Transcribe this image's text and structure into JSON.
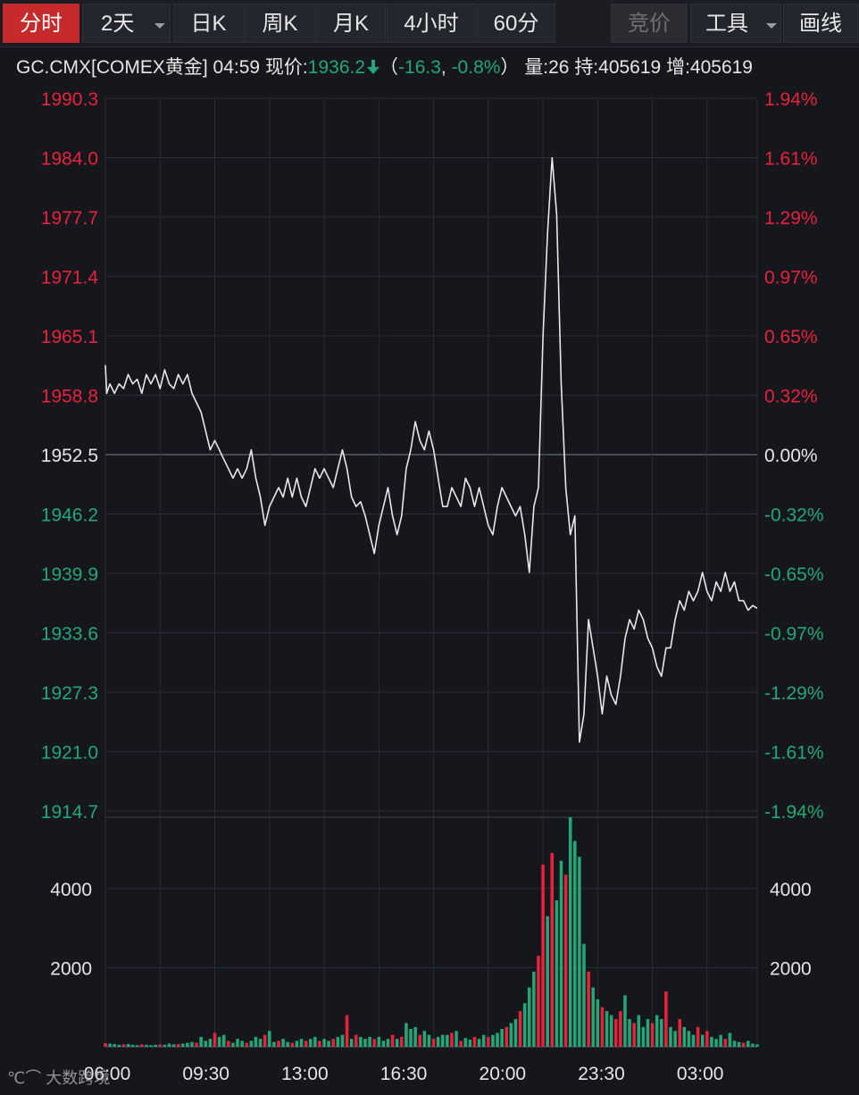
{
  "toolbar": {
    "tabs": [
      {
        "label": "分时",
        "active": true
      },
      {
        "label": "2天",
        "dropdown": true
      },
      {
        "label": "日K"
      },
      {
        "label": "周K"
      },
      {
        "label": "月K"
      },
      {
        "label": "4小时"
      },
      {
        "label": "60分"
      }
    ],
    "bidding_label": "竞价",
    "tools_label": "工具",
    "draw_label": "画线"
  },
  "quote": {
    "symbol": "GC.CMX[COMEX黄金]",
    "time": "04:59",
    "price_label": "现价:",
    "price": "1936.2",
    "change": "-16.3",
    "change_pct": "-0.8%",
    "volume_label": "量:26",
    "holding_label": "持:405619",
    "increase_label": "增:405619"
  },
  "watermark": "大数跨境",
  "colors": {
    "up": "#e8223c",
    "down": "#23a777",
    "line": "#e8e8e8",
    "neutral": "#e6e6e6"
  },
  "chart_data": {
    "type": "line",
    "base_price": 1952.5,
    "ylim": [
      1914.7,
      1990.3
    ],
    "y_ticks": [
      "1990.3",
      "1984.0",
      "1977.7",
      "1971.4",
      "1965.1",
      "1958.8",
      "1952.5",
      "1946.2",
      "1939.9",
      "1933.6",
      "1927.3",
      "1921.0",
      "1914.7"
    ],
    "pct_ticks": [
      "1.94%",
      "1.61%",
      "1.29%",
      "0.97%",
      "0.65%",
      "0.32%",
      "0.00%",
      "-0.32%",
      "-0.65%",
      "-0.97%",
      "-1.29%",
      "-1.61%",
      "-1.94%"
    ],
    "x_ticks": [
      "06:00",
      "09:30",
      "13:00",
      "16:30",
      "20:00",
      "23:30",
      "03:00"
    ],
    "price_series": [
      [
        0,
        1962
      ],
      [
        0.3,
        1959
      ],
      [
        1,
        1960
      ],
      [
        2,
        1959
      ],
      [
        3,
        1960
      ],
      [
        4,
        1959.5
      ],
      [
        5,
        1961
      ],
      [
        6,
        1960
      ],
      [
        7,
        1960.5
      ],
      [
        8,
        1959
      ],
      [
        9,
        1961
      ],
      [
        10,
        1960
      ],
      [
        11,
        1961
      ],
      [
        12,
        1959.5
      ],
      [
        13,
        1961.5
      ],
      [
        14,
        1960
      ],
      [
        15,
        1959.5
      ],
      [
        16,
        1961
      ],
      [
        17,
        1960
      ],
      [
        18,
        1961
      ],
      [
        19,
        1959
      ],
      [
        20,
        1958
      ],
      [
        21,
        1957
      ],
      [
        22,
        1955
      ],
      [
        23,
        1953
      ],
      [
        24,
        1954
      ],
      [
        25,
        1953
      ],
      [
        26,
        1952
      ],
      [
        27,
        1951
      ],
      [
        28,
        1950
      ],
      [
        29,
        1951
      ],
      [
        30,
        1950
      ],
      [
        31,
        1951
      ],
      [
        32,
        1953
      ],
      [
        33,
        1950
      ],
      [
        34,
        1948
      ],
      [
        35,
        1945
      ],
      [
        36,
        1947
      ],
      [
        37,
        1948
      ],
      [
        38,
        1949
      ],
      [
        39,
        1948
      ],
      [
        40,
        1950
      ],
      [
        41,
        1948
      ],
      [
        42,
        1950
      ],
      [
        43,
        1948
      ],
      [
        44,
        1947
      ],
      [
        45,
        1949
      ],
      [
        46,
        1951
      ],
      [
        47,
        1950
      ],
      [
        48,
        1951
      ],
      [
        49,
        1950
      ],
      [
        50,
        1949
      ],
      [
        51,
        1951
      ],
      [
        52,
        1953
      ],
      [
        53,
        1951
      ],
      [
        54,
        1948
      ],
      [
        55,
        1947
      ],
      [
        56,
        1947.5
      ],
      [
        57,
        1946
      ],
      [
        58,
        1944
      ],
      [
        59,
        1942
      ],
      [
        60,
        1945
      ],
      [
        61,
        1947
      ],
      [
        62,
        1949
      ],
      [
        63,
        1946
      ],
      [
        64,
        1944
      ],
      [
        65,
        1946
      ],
      [
        66,
        1951
      ],
      [
        67,
        1953
      ],
      [
        68,
        1956
      ],
      [
        69,
        1954
      ],
      [
        70,
        1953
      ],
      [
        71,
        1955
      ],
      [
        72,
        1953
      ],
      [
        73,
        1950
      ],
      [
        74,
        1947
      ],
      [
        75,
        1947
      ],
      [
        76,
        1949
      ],
      [
        77,
        1948
      ],
      [
        78,
        1947
      ],
      [
        79,
        1950
      ],
      [
        80,
        1949
      ],
      [
        81,
        1947
      ],
      [
        82,
        1949
      ],
      [
        83,
        1947
      ],
      [
        84,
        1945
      ],
      [
        85,
        1944
      ],
      [
        86,
        1947
      ],
      [
        87,
        1949
      ],
      [
        88,
        1948
      ],
      [
        89,
        1947
      ],
      [
        90,
        1946
      ],
      [
        91,
        1947
      ],
      [
        92,
        1944
      ],
      [
        93,
        1940
      ],
      [
        94,
        1947
      ],
      [
        95,
        1949
      ],
      [
        96,
        1965
      ],
      [
        97,
        1976
      ],
      [
        98,
        1984
      ],
      [
        99,
        1978
      ],
      [
        100,
        1960
      ],
      [
        101,
        1949
      ],
      [
        102,
        1944
      ],
      [
        103,
        1946
      ],
      [
        104,
        1922
      ],
      [
        105,
        1925
      ],
      [
        106,
        1935
      ],
      [
        107,
        1932
      ],
      [
        108,
        1929
      ],
      [
        109,
        1925
      ],
      [
        110,
        1929
      ],
      [
        111,
        1927
      ],
      [
        112,
        1926
      ],
      [
        113,
        1929
      ],
      [
        114,
        1933
      ],
      [
        115,
        1935
      ],
      [
        116,
        1934
      ],
      [
        117,
        1936
      ],
      [
        118,
        1935
      ],
      [
        119,
        1933
      ],
      [
        120,
        1932
      ],
      [
        121,
        1930
      ],
      [
        122,
        1929
      ],
      [
        123,
        1932
      ],
      [
        124,
        1932
      ],
      [
        125,
        1935
      ],
      [
        126,
        1937
      ],
      [
        127,
        1936
      ],
      [
        128,
        1938
      ],
      [
        129,
        1937
      ],
      [
        130,
        1938
      ],
      [
        131,
        1940
      ],
      [
        132,
        1938
      ],
      [
        133,
        1937
      ],
      [
        134,
        1939
      ],
      [
        135,
        1938
      ],
      [
        136,
        1940
      ],
      [
        137,
        1938
      ],
      [
        138,
        1939
      ],
      [
        139,
        1937
      ],
      [
        140,
        1937
      ],
      [
        141,
        1936
      ],
      [
        142,
        1936.5
      ],
      [
        143,
        1936.2
      ]
    ],
    "volume_ticks": [
      "4000",
      "2000"
    ],
    "volume_max": 5800,
    "volume_series": [
      {
        "x": 96,
        "v": 4600,
        "dir": "up"
      },
      {
        "x": 98,
        "v": 4900,
        "dir": "up"
      },
      {
        "x": 100,
        "v": 4700,
        "dir": "down"
      },
      {
        "x": 101,
        "v": 4350,
        "dir": "up"
      },
      {
        "x": 102,
        "v": 5800,
        "dir": "down"
      },
      {
        "x": 103,
        "v": 5200,
        "dir": "down"
      },
      {
        "x": 104,
        "v": 4800,
        "dir": "down"
      },
      {
        "x": 99,
        "v": 3700,
        "dir": "down"
      },
      {
        "x": 97,
        "v": 3300,
        "dir": "down"
      },
      {
        "x": 95,
        "v": 2300,
        "dir": "up"
      },
      {
        "x": 94,
        "v": 1900,
        "dir": "down"
      },
      {
        "x": 93,
        "v": 1500,
        "dir": "down"
      },
      {
        "x": 105,
        "v": 2600,
        "dir": "down"
      },
      {
        "x": 106,
        "v": 1900,
        "dir": "up"
      },
      {
        "x": 107,
        "v": 1500,
        "dir": "down"
      },
      {
        "x": 108,
        "v": 1200,
        "dir": "down"
      },
      {
        "x": 109,
        "v": 1000,
        "dir": "up"
      },
      {
        "x": 110,
        "v": 900,
        "dir": "down"
      },
      {
        "x": 111,
        "v": 800,
        "dir": "down"
      },
      {
        "x": 112,
        "v": 700,
        "dir": "up"
      },
      {
        "x": 113,
        "v": 900,
        "dir": "up"
      },
      {
        "x": 114,
        "v": 1300,
        "dir": "down"
      },
      {
        "x": 115,
        "v": 700,
        "dir": "down"
      },
      {
        "x": 116,
        "v": 600,
        "dir": "up"
      },
      {
        "x": 117,
        "v": 800,
        "dir": "down"
      },
      {
        "x": 118,
        "v": 500,
        "dir": "down"
      },
      {
        "x": 119,
        "v": 700,
        "dir": "down"
      },
      {
        "x": 120,
        "v": 600,
        "dir": "up"
      },
      {
        "x": 121,
        "v": 800,
        "dir": "down"
      },
      {
        "x": 122,
        "v": 700,
        "dir": "down"
      },
      {
        "x": 123,
        "v": 1400,
        "dir": "up"
      },
      {
        "x": 124,
        "v": 500,
        "dir": "down"
      },
      {
        "x": 125,
        "v": 400,
        "dir": "down"
      },
      {
        "x": 126,
        "v": 700,
        "dir": "up"
      },
      {
        "x": 127,
        "v": 500,
        "dir": "down"
      },
      {
        "x": 128,
        "v": 400,
        "dir": "down"
      },
      {
        "x": 129,
        "v": 300,
        "dir": "down"
      },
      {
        "x": 130,
        "v": 500,
        "dir": "up"
      },
      {
        "x": 131,
        "v": 300,
        "dir": "down"
      },
      {
        "x": 132,
        "v": 400,
        "dir": "up"
      },
      {
        "x": 133,
        "v": 250,
        "dir": "down"
      },
      {
        "x": 134,
        "v": 200,
        "dir": "down"
      },
      {
        "x": 135,
        "v": 300,
        "dir": "down"
      },
      {
        "x": 136,
        "v": 200,
        "dir": "up"
      },
      {
        "x": 137,
        "v": 350,
        "dir": "down"
      },
      {
        "x": 138,
        "v": 150,
        "dir": "down"
      },
      {
        "x": 139,
        "v": 120,
        "dir": "down"
      },
      {
        "x": 140,
        "v": 100,
        "dir": "up"
      },
      {
        "x": 141,
        "v": 150,
        "dir": "down"
      },
      {
        "x": 142,
        "v": 80,
        "dir": "down"
      },
      {
        "x": 143,
        "v": 60,
        "dir": "down"
      },
      {
        "x": 92,
        "v": 1100,
        "dir": "down"
      },
      {
        "x": 91,
        "v": 900,
        "dir": "up"
      },
      {
        "x": 90,
        "v": 700,
        "dir": "down"
      },
      {
        "x": 89,
        "v": 600,
        "dir": "down"
      },
      {
        "x": 88,
        "v": 500,
        "dir": "up"
      },
      {
        "x": 87,
        "v": 450,
        "dir": "down"
      },
      {
        "x": 86,
        "v": 350,
        "dir": "down"
      },
      {
        "x": 85,
        "v": 300,
        "dir": "down"
      },
      {
        "x": 84,
        "v": 250,
        "dir": "up"
      },
      {
        "x": 83,
        "v": 300,
        "dir": "down"
      },
      {
        "x": 82,
        "v": 200,
        "dir": "down"
      },
      {
        "x": 81,
        "v": 250,
        "dir": "up"
      },
      {
        "x": 80,
        "v": 180,
        "dir": "down"
      },
      {
        "x": 79,
        "v": 220,
        "dir": "down"
      },
      {
        "x": 78,
        "v": 150,
        "dir": "up"
      },
      {
        "x": 77,
        "v": 400,
        "dir": "down"
      },
      {
        "x": 76,
        "v": 350,
        "dir": "up"
      },
      {
        "x": 75,
        "v": 300,
        "dir": "down"
      },
      {
        "x": 74,
        "v": 300,
        "dir": "down"
      },
      {
        "x": 73,
        "v": 250,
        "dir": "down"
      },
      {
        "x": 72,
        "v": 200,
        "dir": "up"
      },
      {
        "x": 71,
        "v": 300,
        "dir": "down"
      },
      {
        "x": 70,
        "v": 400,
        "dir": "down"
      },
      {
        "x": 69,
        "v": 300,
        "dir": "up"
      },
      {
        "x": 68,
        "v": 500,
        "dir": "down"
      },
      {
        "x": 67,
        "v": 450,
        "dir": "down"
      },
      {
        "x": 66,
        "v": 600,
        "dir": "down"
      },
      {
        "x": 65,
        "v": 250,
        "dir": "up"
      },
      {
        "x": 64,
        "v": 200,
        "dir": "down"
      },
      {
        "x": 63,
        "v": 300,
        "dir": "up"
      },
      {
        "x": 62,
        "v": 200,
        "dir": "down"
      },
      {
        "x": 61,
        "v": 150,
        "dir": "down"
      },
      {
        "x": 60,
        "v": 250,
        "dir": "down"
      },
      {
        "x": 59,
        "v": 200,
        "dir": "up"
      },
      {
        "x": 58,
        "v": 250,
        "dir": "down"
      },
      {
        "x": 57,
        "v": 200,
        "dir": "down"
      },
      {
        "x": 56,
        "v": 250,
        "dir": "down"
      },
      {
        "x": 55,
        "v": 300,
        "dir": "up"
      },
      {
        "x": 54,
        "v": 200,
        "dir": "down"
      },
      {
        "x": 53,
        "v": 800,
        "dir": "up"
      },
      {
        "x": 52,
        "v": 300,
        "dir": "down"
      },
      {
        "x": 51,
        "v": 250,
        "dir": "down"
      },
      {
        "x": 50,
        "v": 200,
        "dir": "up"
      },
      {
        "x": 49,
        "v": 150,
        "dir": "down"
      },
      {
        "x": 48,
        "v": 200,
        "dir": "down"
      },
      {
        "x": 47,
        "v": 150,
        "dir": "up"
      },
      {
        "x": 46,
        "v": 250,
        "dir": "down"
      },
      {
        "x": 45,
        "v": 200,
        "dir": "down"
      },
      {
        "x": 44,
        "v": 150,
        "dir": "up"
      },
      {
        "x": 43,
        "v": 200,
        "dir": "down"
      },
      {
        "x": 42,
        "v": 150,
        "dir": "down"
      },
      {
        "x": 41,
        "v": 100,
        "dir": "up"
      },
      {
        "x": 40,
        "v": 120,
        "dir": "down"
      },
      {
        "x": 39,
        "v": 200,
        "dir": "down"
      },
      {
        "x": 38,
        "v": 150,
        "dir": "up"
      },
      {
        "x": 37,
        "v": 120,
        "dir": "down"
      },
      {
        "x": 36,
        "v": 400,
        "dir": "down"
      },
      {
        "x": 35,
        "v": 300,
        "dir": "up"
      },
      {
        "x": 34,
        "v": 200,
        "dir": "down"
      },
      {
        "x": 33,
        "v": 250,
        "dir": "down"
      },
      {
        "x": 32,
        "v": 150,
        "dir": "down"
      },
      {
        "x": 31,
        "v": 100,
        "dir": "up"
      },
      {
        "x": 30,
        "v": 150,
        "dir": "down"
      },
      {
        "x": 29,
        "v": 200,
        "dir": "down"
      },
      {
        "x": 28,
        "v": 100,
        "dir": "down"
      },
      {
        "x": 27,
        "v": 150,
        "dir": "up"
      },
      {
        "x": 26,
        "v": 300,
        "dir": "down"
      },
      {
        "x": 25,
        "v": 250,
        "dir": "down"
      },
      {
        "x": 24,
        "v": 350,
        "dir": "up"
      },
      {
        "x": 23,
        "v": 200,
        "dir": "down"
      },
      {
        "x": 22,
        "v": 150,
        "dir": "down"
      },
      {
        "x": 21,
        "v": 250,
        "dir": "down"
      },
      {
        "x": 20,
        "v": 100,
        "dir": "up"
      },
      {
        "x": 19,
        "v": 120,
        "dir": "down"
      },
      {
        "x": 18,
        "v": 100,
        "dir": "down"
      },
      {
        "x": 17,
        "v": 80,
        "dir": "down"
      },
      {
        "x": 16,
        "v": 70,
        "dir": "up"
      },
      {
        "x": 15,
        "v": 60,
        "dir": "down"
      },
      {
        "x": 14,
        "v": 80,
        "dir": "down"
      },
      {
        "x": 13,
        "v": 50,
        "dir": "down"
      },
      {
        "x": 12,
        "v": 60,
        "dir": "up"
      },
      {
        "x": 11,
        "v": 50,
        "dir": "down"
      },
      {
        "x": 10,
        "v": 40,
        "dir": "down"
      },
      {
        "x": 9,
        "v": 50,
        "dir": "down"
      },
      {
        "x": 8,
        "v": 60,
        "dir": "up"
      },
      {
        "x": 7,
        "v": 40,
        "dir": "down"
      },
      {
        "x": 6,
        "v": 50,
        "dir": "down"
      },
      {
        "x": 5,
        "v": 70,
        "dir": "down"
      },
      {
        "x": 4,
        "v": 60,
        "dir": "up"
      },
      {
        "x": 3,
        "v": 50,
        "dir": "down"
      },
      {
        "x": 2,
        "v": 70,
        "dir": "down"
      },
      {
        "x": 1,
        "v": 80,
        "dir": "down"
      },
      {
        "x": 0,
        "v": 90,
        "dir": "up"
      }
    ]
  }
}
